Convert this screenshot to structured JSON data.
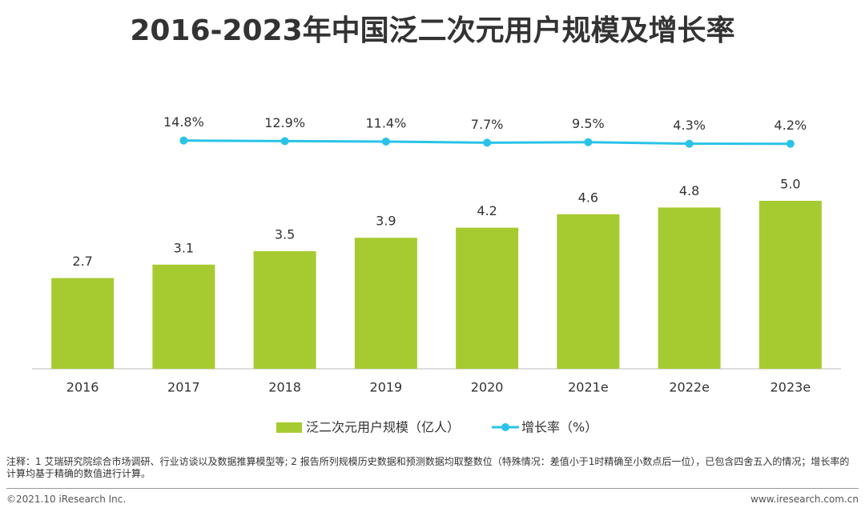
{
  "chart_data": {
    "type": "bar-line",
    "title": "2016-2023年中国泛二次元用户规模及增长率",
    "categories": [
      "2016",
      "2017",
      "2018",
      "2019",
      "2020",
      "2021e",
      "2022e",
      "2023e"
    ],
    "ylim": [
      0,
      9
    ],
    "y2lim": [
      -740,
      260
    ],
    "legend": "bottom",
    "series": [
      {
        "name": "泛二次元用户规模（亿人）",
        "color": "#a6cb30",
        "type": "bar",
        "values": [
          2.7,
          3.1,
          3.5,
          3.9,
          4.2,
          4.6,
          4.8,
          5.0
        ],
        "value_labels": [
          "2.7",
          "3.1",
          "3.5",
          "3.9",
          "4.2",
          "4.6",
          "4.8",
          "5.0"
        ]
      },
      {
        "name": "增长率（%）",
        "color": "#29c3e8",
        "type": "line",
        "axis": "y2",
        "values": [
          null,
          14.8,
          12.9,
          11.4,
          7.7,
          9.5,
          4.3,
          4.2
        ],
        "value_labels": [
          null,
          "14.8%",
          "12.9%",
          "11.4%",
          "7.7%",
          "9.5%",
          "4.3%",
          "4.2%"
        ]
      }
    ]
  },
  "notes": "注释：1 艾瑞研究院综合市场调研、行业访谈以及数据推算模型等; 2 报告所列规模历史数据和预测数据均取整数位（特殊情况：差值小于1时精确至小数点后一位），已包含四舍五入的情况；增长率的计算均基于精确的数值进行计算。",
  "footer": {
    "source": "©2021.10 iResearch Inc.",
    "website": "www.iresearch.com.cn"
  }
}
